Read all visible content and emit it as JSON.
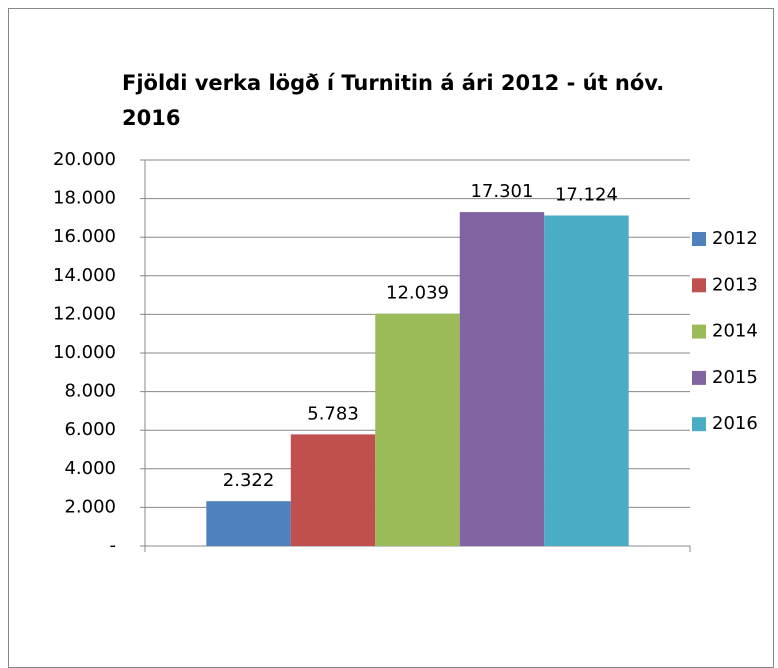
{
  "chart_data": {
    "type": "bar",
    "title": "Fjöldi verka lögð í Turnitin á ári 2012 - út nóv. 2016",
    "categories": [
      null
    ],
    "series": [
      {
        "name": "2012",
        "color": "#4f81bd",
        "values": [
          2322
        ],
        "value_labels": [
          "2.322"
        ]
      },
      {
        "name": "2013",
        "color": "#c0504d",
        "values": [
          5783
        ],
        "value_labels": [
          "5.783"
        ]
      },
      {
        "name": "2014",
        "color": "#9bbb59",
        "values": [
          12039
        ],
        "value_labels": [
          "12.039"
        ]
      },
      {
        "name": "2015",
        "color": "#8064a2",
        "values": [
          17301
        ],
        "value_labels": [
          "17.301"
        ]
      },
      {
        "name": "2016",
        "color": "#4bacc6",
        "values": [
          17124
        ],
        "value_labels": [
          "17.124"
        ]
      }
    ],
    "ylim": [
      0,
      20000
    ],
    "yticks": [
      {
        "value": 0,
        "label": "-"
      },
      {
        "value": 2000,
        "label": "2.000"
      },
      {
        "value": 4000,
        "label": "4.000"
      },
      {
        "value": 6000,
        "label": "6.000"
      },
      {
        "value": 8000,
        "label": "8.000"
      },
      {
        "value": 10000,
        "label": "10.000"
      },
      {
        "value": 12000,
        "label": "12.000"
      },
      {
        "value": 14000,
        "label": "14.000"
      },
      {
        "value": 16000,
        "label": "16.000"
      },
      {
        "value": 18000,
        "label": "18.000"
      },
      {
        "value": 20000,
        "label": "20.000"
      }
    ],
    "grid": true,
    "legend": "right"
  }
}
